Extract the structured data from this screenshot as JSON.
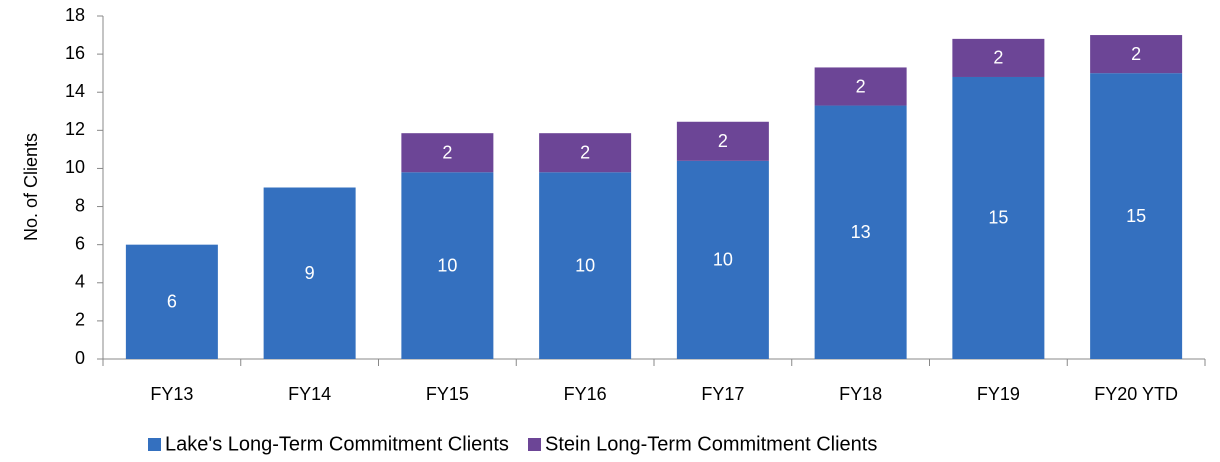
{
  "chart_data": {
    "type": "stacked_bar",
    "y_axis_label": "No. of Clients",
    "categories": [
      "FY13",
      "FY14",
      "FY15",
      "FY16",
      "FY17",
      "FY18",
      "FY19",
      "FY20 YTD"
    ],
    "series": [
      {
        "name": "Lake's Long-Term Commitment Clients",
        "color": "#3470bf",
        "values": [
          6,
          9,
          9.8,
          9.8,
          10.4,
          13.3,
          14.8,
          15
        ],
        "value_labels": [
          "6",
          "9",
          "10",
          "10",
          "10",
          "13",
          "15",
          "15"
        ]
      },
      {
        "name": "Stein Long-Term Commitment Clients",
        "color": "#6c4596",
        "values": [
          null,
          null,
          2.05,
          2.05,
          2.05,
          2,
          2,
          2
        ],
        "value_labels": [
          null,
          null,
          "2",
          "2",
          "2",
          "2",
          "2",
          "2"
        ]
      }
    ],
    "ylim": [
      0,
      18
    ],
    "yticks": [
      0,
      2,
      4,
      6,
      8,
      10,
      12,
      14,
      16,
      18
    ],
    "grid": false,
    "legend": "bottom"
  }
}
